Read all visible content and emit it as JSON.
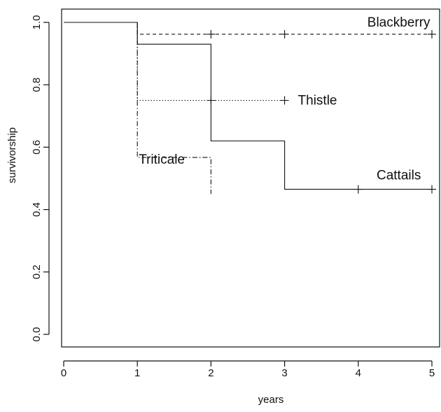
{
  "chart_data": {
    "type": "line",
    "step": true,
    "title": "",
    "xlabel": "years",
    "ylabel": "survivorship",
    "xlim": [
      0,
      5
    ],
    "ylim": [
      0,
      1
    ],
    "x_ticks": [
      "0",
      "1",
      "2",
      "3",
      "4",
      "5"
    ],
    "y_ticks": [
      "0.0",
      "0.2",
      "0.4",
      "0.6",
      "0.8",
      "1.0"
    ],
    "grid": false,
    "legend": "none",
    "series": [
      {
        "name": "Blackberry",
        "line_style": "dashed",
        "values": [
          [
            0,
            1.0
          ],
          [
            1,
            1.0
          ],
          [
            1,
            0.962
          ],
          [
            5,
            0.962
          ]
        ],
        "censor_marks": [
          2,
          3,
          5
        ]
      },
      {
        "name": "Thistle",
        "line_style": "dotted",
        "values": [
          [
            0,
            1.0
          ],
          [
            1,
            1.0
          ],
          [
            1,
            0.75
          ],
          [
            3,
            0.75
          ]
        ],
        "censor_marks": [
          2,
          3
        ]
      },
      {
        "name": "Cattails",
        "line_style": "solid",
        "values": [
          [
            0,
            1.0
          ],
          [
            1,
            1.0
          ],
          [
            1,
            0.93
          ],
          [
            2,
            0.93
          ],
          [
            2,
            0.62
          ],
          [
            3,
            0.62
          ],
          [
            3,
            0.465
          ],
          [
            5,
            0.465
          ]
        ],
        "censor_marks": [
          4,
          5
        ]
      },
      {
        "name": "Triticale",
        "line_style": "dashdot",
        "values": [
          [
            0,
            1.0
          ],
          [
            1,
            1.0
          ],
          [
            1,
            0.567
          ],
          [
            2,
            0.567
          ],
          [
            2,
            0.45
          ]
        ],
        "censor_marks": []
      }
    ],
    "annotations": [
      {
        "text": "Blackberry",
        "x": 4.55,
        "y": 1.0
      },
      {
        "text": "Thistle",
        "x": 3.5,
        "y": 0.75
      },
      {
        "text": "Cattails",
        "x": 4.55,
        "y": 0.51
      },
      {
        "text": "Triticale",
        "x": 1.4,
        "y": 0.56
      }
    ]
  }
}
